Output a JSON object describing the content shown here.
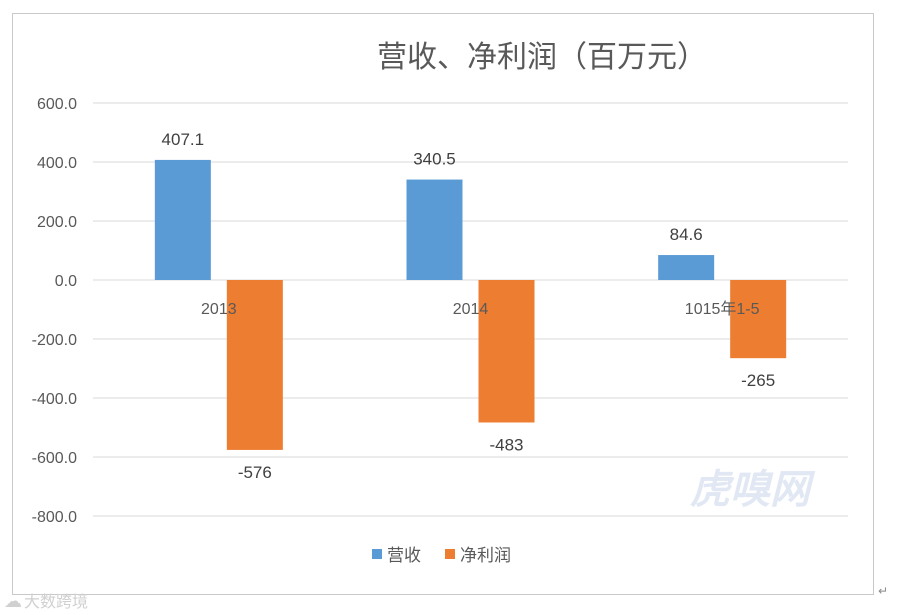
{
  "chart_data": {
    "type": "bar",
    "title": "营收、净利润（百万元）",
    "categories": [
      "2013",
      "2014",
      "1015年1-5"
    ],
    "series": [
      {
        "name": "营收",
        "values": [
          407.1,
          340.5,
          84.6
        ],
        "labels": [
          "407.1",
          "340.5",
          "84.6"
        ],
        "color": "#5b9bd5"
      },
      {
        "name": "净利润",
        "values": [
          -576,
          -483,
          -265
        ],
        "labels": [
          "-576",
          "-483",
          "-265"
        ],
        "color": "#ed7d31"
      }
    ],
    "ylim": [
      -800,
      600
    ],
    "yticks": [
      600,
      400,
      200,
      0,
      -200,
      -400,
      -600,
      -800
    ],
    "ytick_labels": [
      "600.0",
      "400.0",
      "200.0",
      "0.0",
      "-200.0",
      "-400.0",
      "-600.0",
      "-800.0"
    ],
    "grid": true,
    "legend": "bottom-center",
    "xlabel": "",
    "ylabel": ""
  },
  "watermark": "虎嗅网",
  "corner_brand": "大数跨境",
  "corner_icon": "chat-bubble-icon",
  "para_mark": "↵"
}
